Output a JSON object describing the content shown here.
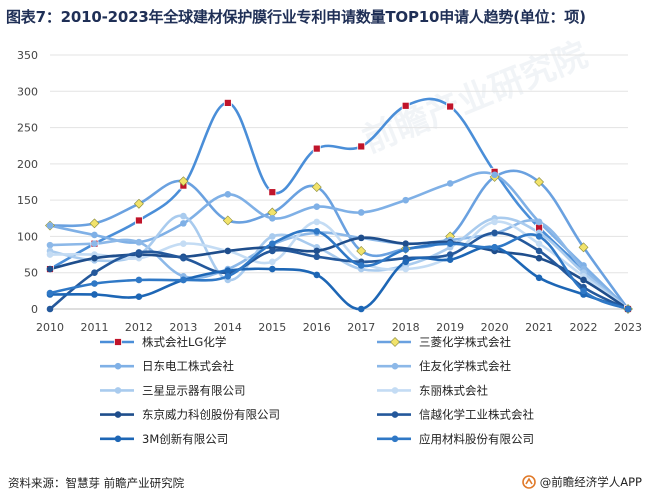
{
  "title": "图表7：2010-2023年全球建材保护膜行业专利申请数量TOP10申请人趋势(单位：项)",
  "footer": {
    "source": "资料来源：智慧芽 前瞻产业研究院",
    "brand": "@前瞻经济学人APP"
  },
  "watermark": "前瞻产业研究院",
  "chart_data": {
    "type": "line",
    "categories": [
      "2010",
      "2011",
      "2012",
      "2013",
      "2014",
      "2015",
      "2016",
      "2017",
      "2018",
      "2019",
      "2020",
      "2021",
      "2022",
      "2023"
    ],
    "ylim": [
      0,
      350
    ],
    "yticks": [
      0,
      50,
      100,
      150,
      200,
      250,
      300,
      350
    ],
    "legend_placement": "bottom",
    "series": [
      {
        "name": "株式会社LG化学",
        "color": "#4a8ed8",
        "marker": "square-red",
        "values": [
          55,
          90,
          122,
          170,
          284,
          161,
          221,
          224,
          280,
          279,
          189,
          112,
          null,
          0
        ]
      },
      {
        "name": "三菱化学株式会社",
        "color": "#6aa1e0",
        "marker": "diamond-yellow",
        "values": [
          115,
          118,
          145,
          176,
          122,
          133,
          168,
          80,
          83,
          100,
          182,
          175,
          85,
          0
        ]
      },
      {
        "name": "日东电工株式会社",
        "color": "#7fb0e6",
        "marker": "none",
        "values": [
          115,
          102,
          92,
          118,
          158,
          125,
          141,
          133,
          150,
          173,
          185,
          120,
          60,
          0
        ]
      },
      {
        "name": "住友化学株式会社",
        "color": "#8cb8e8",
        "marker": "none",
        "values": [
          88,
          90,
          92,
          45,
          55,
          89,
          105,
          98,
          90,
          95,
          104,
          120,
          55,
          0
        ]
      },
      {
        "name": "三星显示器有限公司",
        "color": "#a9cbee",
        "marker": "none",
        "values": [
          80,
          67,
          75,
          128,
          40,
          100,
          85,
          55,
          60,
          85,
          125,
          105,
          50,
          0
        ]
      },
      {
        "name": "东丽株式会社",
        "color": "#c4dcf4",
        "marker": "none",
        "values": [
          75,
          75,
          70,
          90,
          80,
          65,
          120,
          65,
          55,
          72,
          120,
          90,
          45,
          0
        ]
      },
      {
        "name": "东京威力科创股份有限公司",
        "color": "#1f4e8c",
        "marker": "none",
        "values": [
          55,
          70,
          75,
          72,
          80,
          85,
          80,
          98,
          90,
          92,
          80,
          70,
          40,
          0
        ]
      },
      {
        "name": "信越化学工业株式会社",
        "color": "#24589b",
        "marker": "none",
        "values": [
          0,
          50,
          78,
          70,
          50,
          80,
          72,
          65,
          70,
          75,
          105,
          80,
          30,
          0
        ]
      },
      {
        "name": "3M创新有限公司",
        "color": "#1d66b5",
        "marker": "none",
        "values": [
          20,
          20,
          17,
          40,
          53,
          55,
          47,
          0,
          65,
          68,
          85,
          43,
          20,
          0
        ]
      },
      {
        "name": "应用材料股份有限公司",
        "color": "#2f78c6",
        "marker": "none",
        "values": [
          22,
          35,
          40,
          40,
          45,
          90,
          107,
          60,
          82,
          90,
          85,
          100,
          25,
          0
        ]
      }
    ]
  }
}
